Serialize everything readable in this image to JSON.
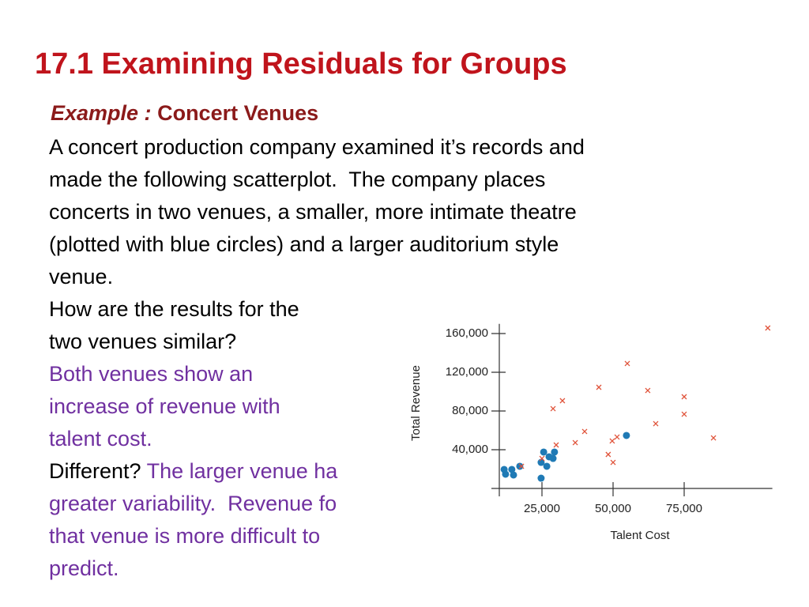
{
  "title": "17.1 Examining Residuals for Groups",
  "example": {
    "label": "Example :",
    "name": "Concert Venues"
  },
  "body": {
    "intro": [
      "A concert production company examined it’s records and",
      "made the following scatterplot.  The company places",
      "concerts in two venues, a smaller, more intimate theatre",
      "(plotted with blue circles) and a larger auditorium style",
      "venue."
    ],
    "question1": [
      "How are the results for the",
      "two venues similar?"
    ],
    "answer1": [
      "Both venues show an",
      "increase of revenue with",
      "talent cost."
    ],
    "question2": "Different?",
    "answer2": [
      "The larger venue ha",
      "greater variability.  Revenue fo",
      "that venue is more difficult to",
      "predict."
    ]
  },
  "chart_data": {
    "type": "scatter",
    "xlabel": "Talent Cost",
    "ylabel": "Total Revenue",
    "xlim": [
      10000,
      106000
    ],
    "ylim": [
      0,
      170000
    ],
    "xticks": [
      {
        "value": 25000,
        "label": "25,000"
      },
      {
        "value": 50000,
        "label": "50,000"
      },
      {
        "value": 75000,
        "label": "75,000"
      }
    ],
    "yticks": [
      {
        "value": 40000,
        "label": "40,000"
      },
      {
        "value": 80000,
        "label": "80,000"
      },
      {
        "value": 120000,
        "label": "120,000"
      },
      {
        "value": 160000,
        "label": "160,000"
      }
    ],
    "series": [
      {
        "color": "#1f7ab5",
        "marker": "circle",
        "x": [
          11700,
          12200,
          14400,
          15000,
          17200,
          24700,
          24700,
          25600,
          26700,
          27500,
          28900,
          29400,
          54700
        ],
        "values": [
          19600,
          14700,
          19600,
          13900,
          22900,
          10600,
          26900,
          37600,
          22900,
          32700,
          31000,
          37600,
          54700
        ]
      },
      {
        "color": "#e0533a",
        "marker": "x",
        "x": [
          17800,
          25000,
          28900,
          32200,
          30000,
          36700,
          40000,
          45000,
          48300,
          50000,
          49700,
          51400,
          55000,
          62200,
          65000,
          75000,
          75000,
          85300,
          104400
        ],
        "values": [
          22900,
          31000,
          82400,
          90600,
          44900,
          47300,
          58800,
          104500,
          35100,
          26900,
          49000,
          53100,
          129000,
          101200,
          66900,
          94700,
          76700,
          52200,
          165700
        ]
      }
    ]
  }
}
